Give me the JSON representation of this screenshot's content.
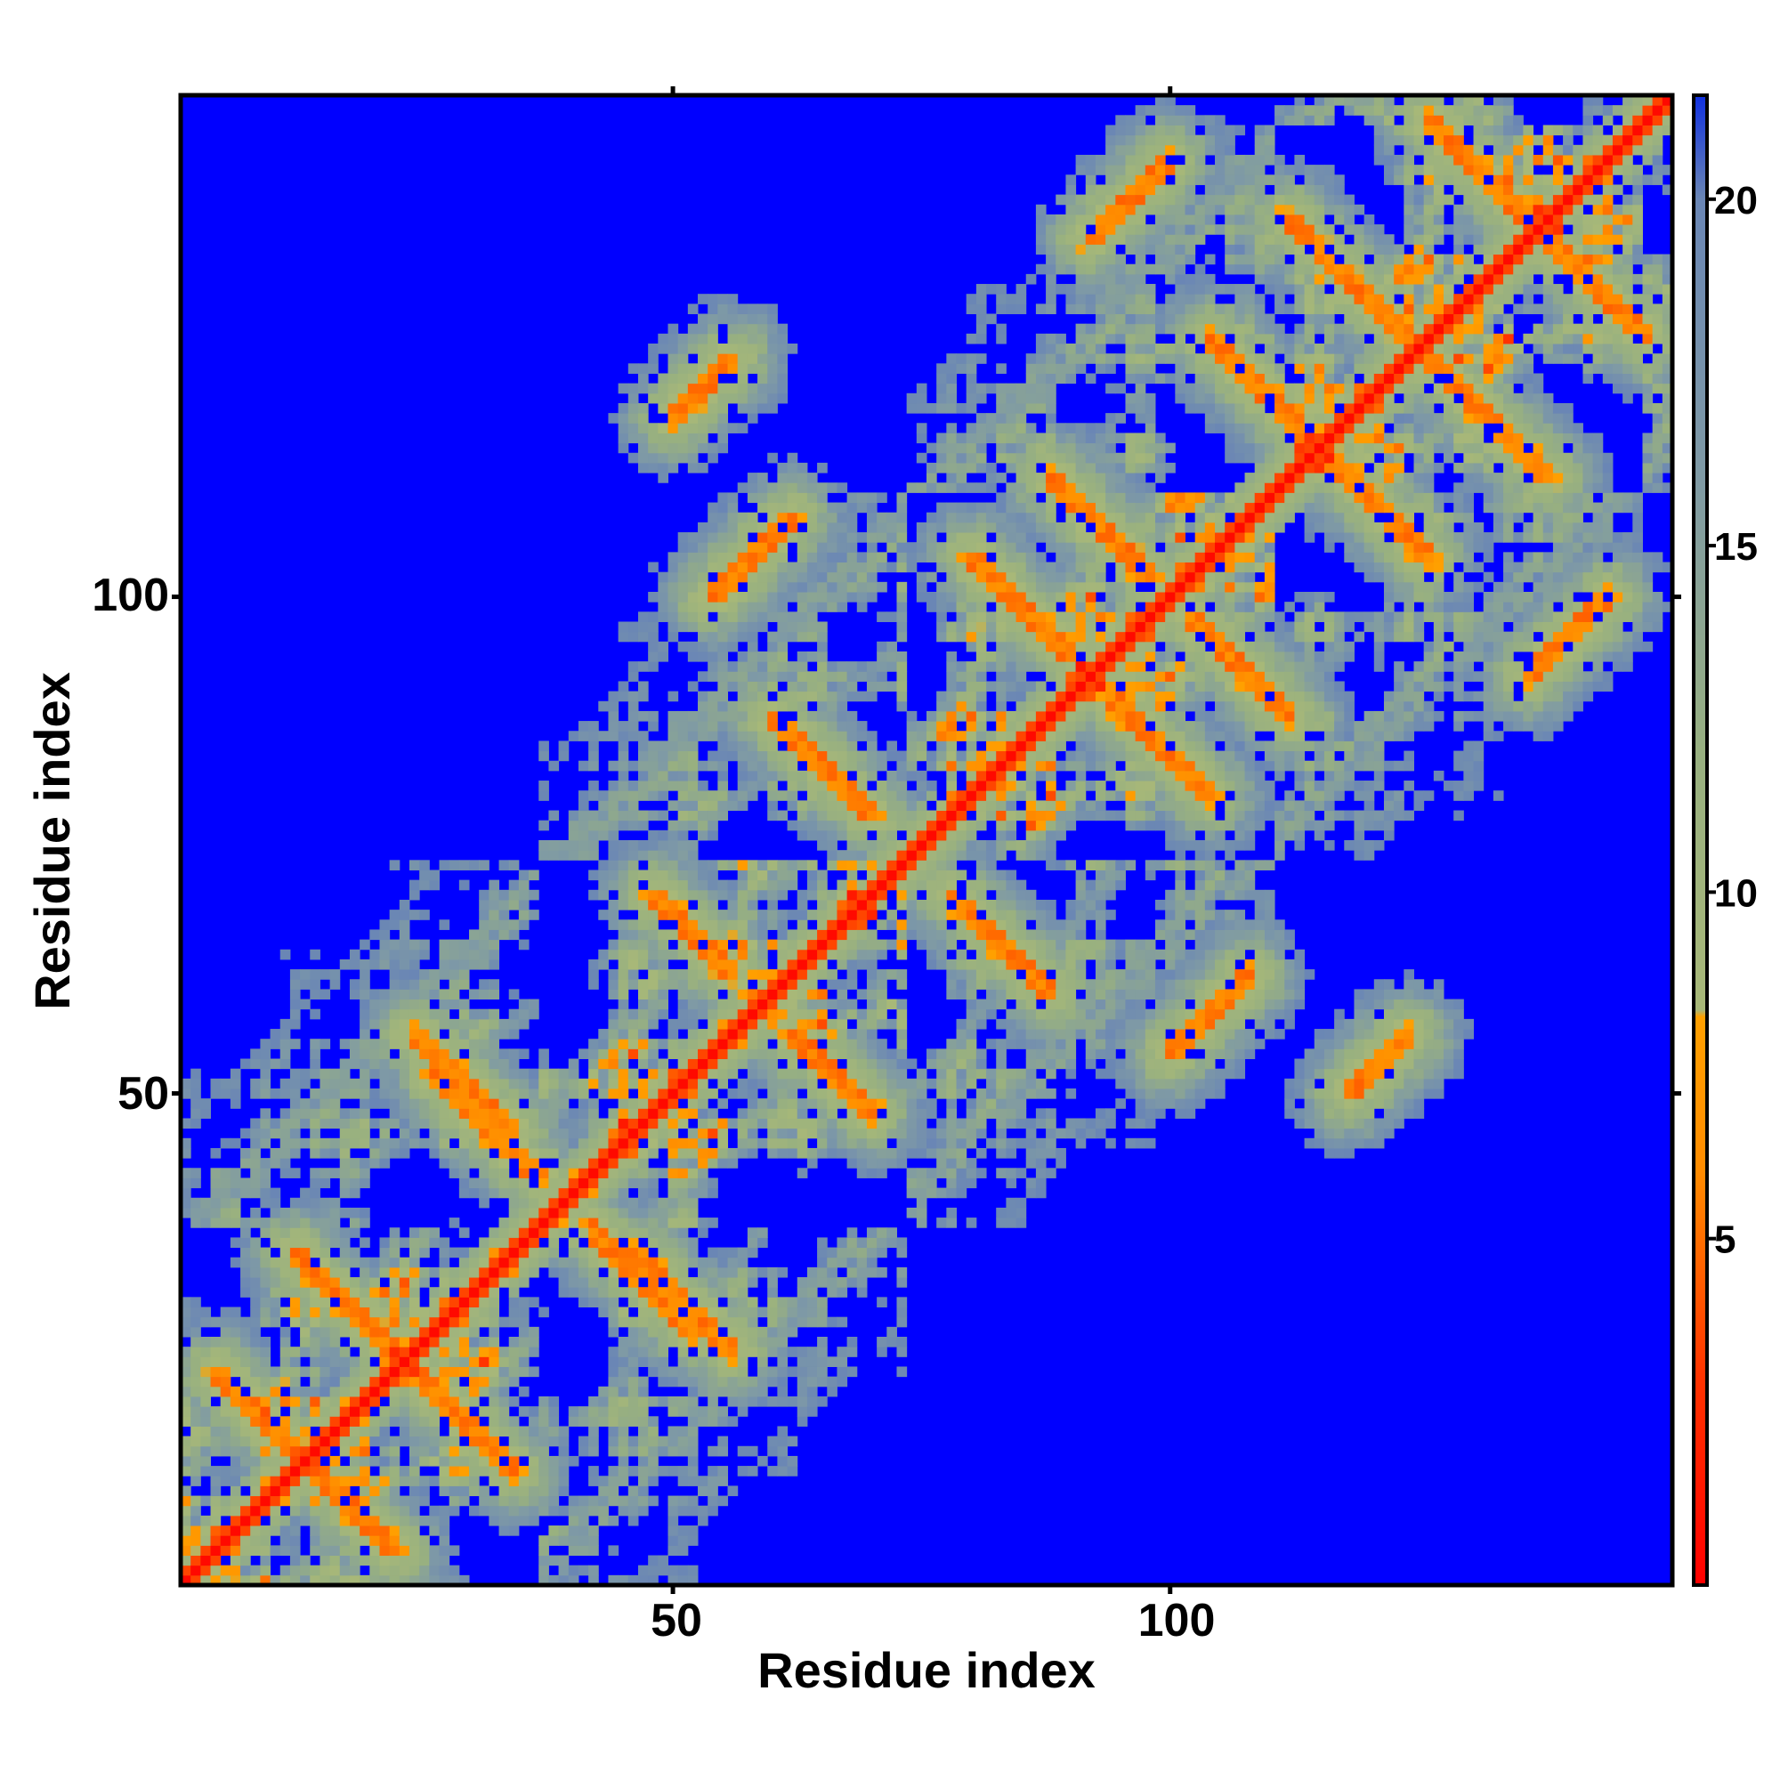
{
  "chart_data": {
    "type": "heatmap",
    "title": "",
    "xlabel": "Residue index",
    "ylabel": "Residue index",
    "n_residues": 150,
    "x_range": [
      1,
      150
    ],
    "y_range": [
      1,
      150
    ],
    "x_ticks": [
      50,
      100
    ],
    "y_ticks": [
      50,
      100
    ],
    "colorbar": {
      "ticks": [
        5,
        10,
        15,
        20
      ],
      "range": [
        0,
        21.5
      ],
      "stops": [
        {
          "value": 0,
          "color": "#ff0000"
        },
        {
          "value": 3,
          "color": "#ff3300"
        },
        {
          "value": 6,
          "color": "#ff8c00"
        },
        {
          "value": 8.2,
          "color": "#ffa000"
        },
        {
          "value": 8.3,
          "color": "#a8b878"
        },
        {
          "value": 12,
          "color": "#98b080"
        },
        {
          "value": 16,
          "color": "#7f9aa5"
        },
        {
          "value": 20,
          "color": "#6a86b5"
        },
        {
          "value": 21.5,
          "color": "#1030e0"
        }
      ]
    },
    "cutoff_value": 20,
    "background_color": "#0000ff",
    "diagonal_color": "#ff0000",
    "contact_bands": [
      {
        "type": "anti",
        "i1": 4,
        "j1": 22,
        "i2": 12,
        "j2": 14
      },
      {
        "type": "anti",
        "i1": 12,
        "j1": 34,
        "i2": 22,
        "j2": 24
      },
      {
        "type": "anti",
        "i1": 24,
        "j1": 56,
        "i2": 34,
        "j2": 46
      },
      {
        "type": "anti",
        "i1": 26,
        "j1": 52,
        "i2": 36,
        "j2": 42
      },
      {
        "type": "anti",
        "i1": 48,
        "j1": 70,
        "i2": 56,
        "j2": 62
      },
      {
        "type": "anti",
        "i1": 60,
        "j1": 88,
        "i2": 70,
        "j2": 78
      },
      {
        "type": "anti",
        "i1": 80,
        "j1": 104,
        "i2": 90,
        "j2": 94
      },
      {
        "type": "anti",
        "i1": 88,
        "j1": 112,
        "i2": 98,
        "j2": 102
      },
      {
        "type": "anti",
        "i1": 104,
        "j1": 126,
        "i2": 114,
        "j2": 116
      },
      {
        "type": "anti",
        "i1": 112,
        "j1": 138,
        "i2": 126,
        "j2": 124
      },
      {
        "type": "anti",
        "i1": 126,
        "j1": 148,
        "i2": 136,
        "j2": 138
      },
      {
        "type": "par",
        "i1": 50,
        "j1": 118,
        "i2": 56,
        "j2": 124
      },
      {
        "type": "par",
        "i1": 92,
        "j1": 136,
        "i2": 100,
        "j2": 144
      },
      {
        "type": "par",
        "i1": 100,
        "j1": 54,
        "i2": 108,
        "j2": 62
      }
    ],
    "contact_points": [
      [
        52,
        9
      ],
      [
        54,
        21
      ],
      [
        104,
        40
      ],
      [
        110,
        38
      ],
      [
        40,
        110
      ],
      [
        60,
        104
      ],
      [
        72,
        104
      ]
    ]
  }
}
